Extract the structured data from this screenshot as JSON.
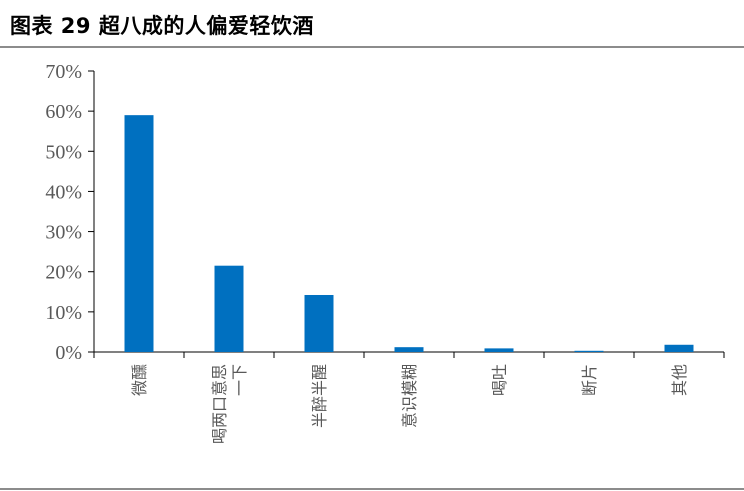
{
  "figure": {
    "title": "图表 29 超八成的人偏爱轻饮酒"
  },
  "chart_data": {
    "type": "bar",
    "categories": [
      [
        "微醺"
      ],
      [
        "喝两口意思",
        "一下"
      ],
      [
        "半醉半醒"
      ],
      [
        "意识模糊"
      ],
      [
        "喝吐"
      ],
      [
        "断片"
      ],
      [
        "其他"
      ]
    ],
    "values": [
      59,
      21.5,
      14.2,
      1.2,
      0.9,
      0.3,
      1.8
    ],
    "unit": "%",
    "ylim": [
      0,
      70
    ],
    "yticks": [
      0,
      10,
      20,
      30,
      40,
      50,
      60,
      70
    ],
    "ytick_labels": [
      "0%",
      "10%",
      "20%",
      "30%",
      "40%",
      "50%",
      "60%",
      "70%"
    ],
    "bar_color": "#0070C0",
    "axis_color": "#000000",
    "text_color": "#595959",
    "grid": false,
    "legend": "none"
  }
}
